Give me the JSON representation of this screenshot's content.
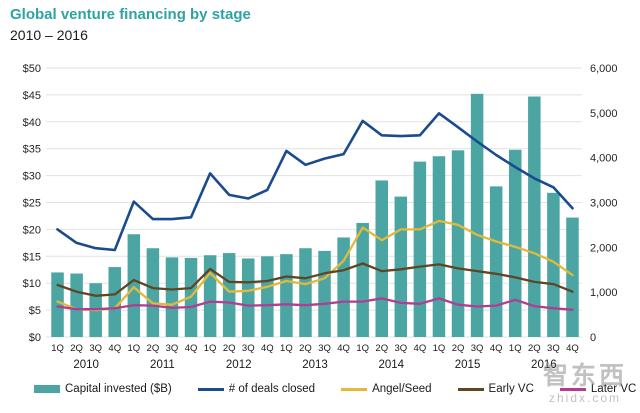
{
  "title": "Global venture financing by stage",
  "subtitle": "2010 – 2016",
  "colors": {
    "bar": "#4BA6A3",
    "deals_line": "#1B4B8F",
    "angel_line": "#E2B93B",
    "early_line": "#5F4524",
    "later_line": "#B03D92",
    "grid": "#E2E2E2",
    "axis_text": "#262626",
    "title_teal": "#2EA3A3"
  },
  "legend": [
    {
      "label": "Capital invested ($B)",
      "swatch": "bar",
      "color": "#4BA6A3"
    },
    {
      "label": "# of deals closed",
      "swatch": "line",
      "color": "#1B4B8F"
    },
    {
      "label": "Angel/Seed",
      "swatch": "line",
      "color": "#E2B93B"
    },
    {
      "label": "Early VC",
      "swatch": "line",
      "color": "#5F4524"
    },
    {
      "label": "Later VC",
      "swatch": "line",
      "color": "#B03D92"
    }
  ],
  "watermark": {
    "logo": "智东西",
    "site": "zhidx.com"
  },
  "chart_data": {
    "type": "bar",
    "subtype": "combo-bar-line",
    "title": "Global venture financing by stage",
    "subtitle": "2010 – 2016",
    "grid": true,
    "legend_position": "bottom",
    "x_quarter_labels": [
      "1Q",
      "2Q",
      "3Q",
      "4Q",
      "1Q",
      "2Q",
      "3Q",
      "4Q",
      "1Q",
      "2Q",
      "3Q",
      "4Q",
      "1Q",
      "2Q",
      "3Q",
      "4Q",
      "1Q",
      "2Q",
      "3Q",
      "4Q",
      "1Q",
      "2Q",
      "3Q",
      "4Q",
      "1Q",
      "2Q",
      "3Q",
      "4Q"
    ],
    "x_year_labels": [
      "2010",
      "2011",
      "2012",
      "2013",
      "2014",
      "2015",
      "2016"
    ],
    "left_axis": {
      "min": 0,
      "max": 50,
      "tick_step": 5,
      "tick_labels": [
        "$0",
        "$5",
        "$10",
        "$15",
        "$20",
        "$25",
        "$30",
        "$35",
        "$40",
        "$45",
        "$50"
      ]
    },
    "right_axis": {
      "min": 0,
      "max": 6000,
      "tick_step": 1000,
      "tick_labels": [
        "0",
        "1,000",
        "2,000",
        "3,000",
        "4,000",
        "5,000",
        "6,000"
      ]
    },
    "bar_series": {
      "name": "Capital invested ($B)",
      "axis": "left",
      "values": [
        12.0,
        11.8,
        10.0,
        13.0,
        19.1,
        16.5,
        14.8,
        14.7,
        15.2,
        15.6,
        14.6,
        15.0,
        15.4,
        16.5,
        16.0,
        18.5,
        21.2,
        29.1,
        26.1,
        32.6,
        33.6,
        34.7,
        45.2,
        28.0,
        34.8,
        44.7,
        26.8,
        22.2
      ]
    },
    "line_series": [
      {
        "name": "# of deals closed",
        "axis": "right",
        "color_key": "deals_line",
        "values": [
          2400,
          2100,
          1980,
          1940,
          3020,
          2630,
          2630,
          2670,
          3650,
          3170,
          3090,
          3280,
          4150,
          3840,
          3980,
          4080,
          4820,
          4500,
          4480,
          4500,
          4990,
          4680,
          4360,
          4060,
          3790,
          3540,
          3340,
          2870
        ]
      },
      {
        "name": "Angel/Seed",
        "axis": "right",
        "color_key": "angel_line",
        "values": [
          790,
          620,
          600,
          640,
          1110,
          750,
          720,
          900,
          1430,
          1010,
          1030,
          1120,
          1250,
          1180,
          1310,
          1700,
          2440,
          2160,
          2400,
          2400,
          2590,
          2500,
          2280,
          2130,
          2010,
          1870,
          1680,
          1380
        ]
      },
      {
        "name": "Early VC",
        "axis": "right",
        "color_key": "early_line",
        "values": [
          1160,
          1010,
          920,
          950,
          1270,
          1090,
          1060,
          1090,
          1520,
          1230,
          1220,
          1250,
          1350,
          1310,
          1420,
          1490,
          1640,
          1470,
          1510,
          1570,
          1620,
          1530,
          1470,
          1410,
          1330,
          1230,
          1180,
          1010
        ]
      },
      {
        "name": "Later VC",
        "axis": "right",
        "color_key": "later_line",
        "values": [
          680,
          620,
          620,
          640,
          710,
          700,
          650,
          670,
          790,
          770,
          700,
          710,
          730,
          710,
          740,
          790,
          790,
          860,
          760,
          740,
          860,
          720,
          680,
          700,
          830,
          690,
          640,
          610
        ]
      }
    ]
  }
}
